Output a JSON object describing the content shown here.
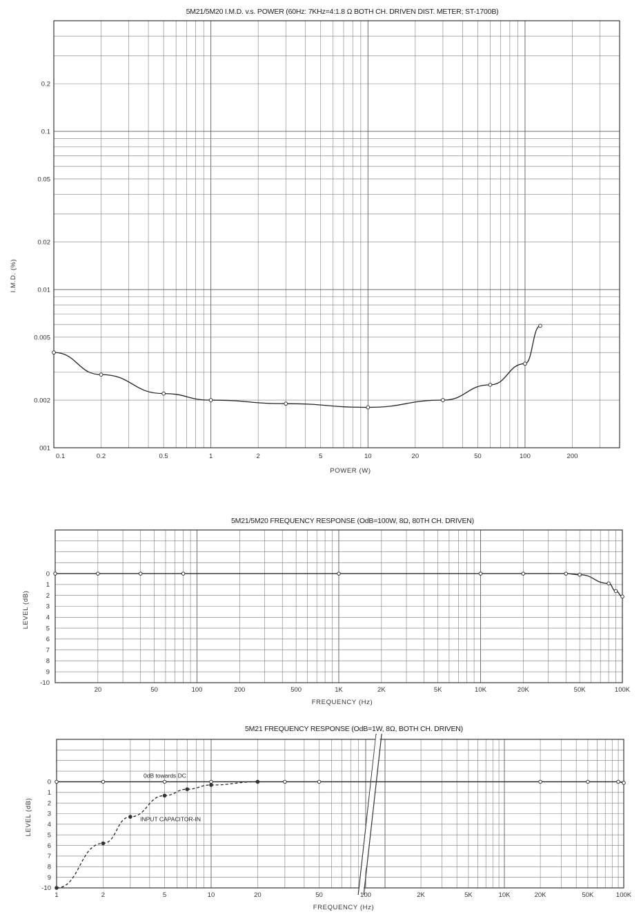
{
  "chart_data": [
    {
      "type": "line",
      "title": "5M21/5M20 I.M.D. v.s. POWER (60Hz: 7KHz=4:1.8 Ω BOTH CH. DRIVEN DIST. METER; ST-1700B)",
      "xlabel": "POWER (W)",
      "ylabel": "I.M.D. (%)",
      "xscale": "log",
      "yscale": "log",
      "xlim": [
        0.1,
        400
      ],
      "ylim": [
        0.001,
        0.5
      ],
      "x_ticks": [
        "0.1",
        "0.2",
        "0.5",
        "1",
        "2",
        "5",
        "10",
        "20",
        "50",
        "100",
        "200"
      ],
      "y_ticks": [
        "0.2",
        "0.1",
        "0.05",
        "0.02",
        "0.01",
        "0.005",
        "0.002",
        "001"
      ],
      "grid": true,
      "series": [
        {
          "x": [
            0.1,
            0.2,
            0.5,
            1,
            3,
            10,
            30,
            60,
            100,
            125
          ],
          "y": [
            0.004,
            0.0029,
            0.0022,
            0.002,
            0.0019,
            0.0018,
            0.002,
            0.0025,
            0.0034,
            0.0059
          ]
        }
      ]
    },
    {
      "type": "line",
      "title": "5M21/5M20 FREQUENCY RESPONSE (OdB=100W, 8Ω, 80TH CH. DRIVEN)",
      "xlabel": "FREQUENCY (Hz)",
      "ylabel": "LEVEL (dB)",
      "xscale": "log",
      "xlim": [
        10,
        100000
      ],
      "ylim": [
        -10,
        4
      ],
      "x_ticks": [
        "20",
        "50",
        "100",
        "200",
        "500",
        "1K",
        "2K",
        "5K",
        "10K",
        "20K",
        "50K",
        "100K"
      ],
      "y_ticks": [
        "0",
        "1",
        "2",
        "3",
        "4",
        "5",
        "6",
        "7",
        "8",
        "9",
        "-10"
      ],
      "grid": true,
      "series": [
        {
          "x": [
            10,
            20,
            40,
            80,
            1000,
            10000,
            20000,
            40000,
            50000,
            80000,
            90000,
            100000
          ],
          "y": [
            0,
            0,
            0,
            0,
            0,
            0,
            0,
            0,
            -0.1,
            -0.9,
            -1.6,
            -2.1
          ]
        }
      ]
    },
    {
      "type": "line",
      "title": "5M21 FREQUENCY RESPONSE (OdB=1W, 8Ω, BOTH CH. DRIVEN)",
      "xlabel": "FREQUENCY (Hz)",
      "ylabel": "LEVEL (dB)",
      "xscale": "log",
      "xlim": [
        1,
        100000
      ],
      "ylim": [
        -10,
        4
      ],
      "x_ticks": [
        "1",
        "2",
        "5",
        "10",
        "20",
        "50",
        "100",
        "2K",
        "5K",
        "10K",
        "20K",
        "50K",
        "100K"
      ],
      "y_ticks": [
        "0",
        "1",
        "2",
        "3",
        "4",
        "5",
        "6",
        "7",
        "8",
        "9",
        "-10"
      ],
      "grid": true,
      "annotations": [
        "0dB towards DC",
        "INPUT CAPACITOR-IN"
      ],
      "series": [
        {
          "style": "solid",
          "x": [
            1,
            2,
            5,
            10,
            20,
            30,
            50,
            20000,
            50000,
            90000,
            100000
          ],
          "y": [
            0,
            0,
            0,
            0,
            0,
            0,
            0,
            0,
            0,
            0,
            -0.1
          ]
        },
        {
          "style": "dashed",
          "x": [
            1,
            2,
            3,
            5,
            7,
            10,
            20
          ],
          "y": [
            -10,
            -5.8,
            -3.3,
            -1.3,
            -0.7,
            -0.3,
            0
          ]
        }
      ]
    }
  ]
}
